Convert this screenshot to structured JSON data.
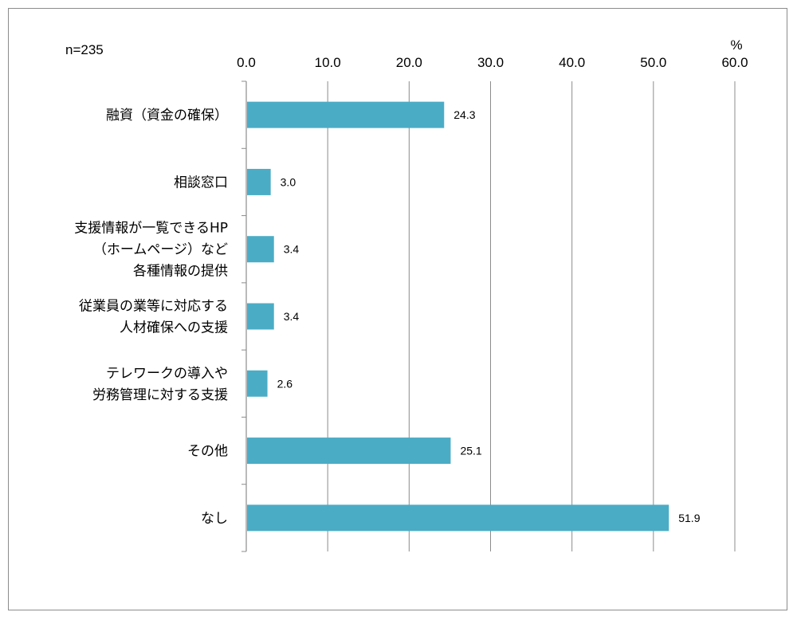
{
  "chart_data": {
    "type": "bar",
    "orientation": "horizontal",
    "sample_note": "n=235",
    "unit_label": "%",
    "categories": [
      [
        "融資（資金の確保）"
      ],
      [
        "相談窓口"
      ],
      [
        "支援情報が一覧できるHP",
        "（ホームページ）など",
        "各種情報の提供"
      ],
      [
        "従業員の業等に対応する",
        "人材確保への支援"
      ],
      [
        "テレワークの導入や",
        "労務管理に対する支援"
      ],
      [
        "その他"
      ],
      [
        "なし"
      ]
    ],
    "values": [
      24.3,
      3.0,
      3.4,
      3.4,
      2.6,
      25.1,
      51.9
    ],
    "value_labels": [
      "24.3",
      "3.0",
      "3.4",
      "3.4",
      "2.6",
      "25.1",
      "51.9"
    ],
    "xlim": [
      0,
      60
    ],
    "ticks": [
      0,
      10,
      20,
      30,
      40,
      50,
      60
    ],
    "tick_labels": [
      "0.0",
      "10.0",
      "20.0",
      "30.0",
      "40.0",
      "50.0",
      "60.0"
    ],
    "grid": true,
    "axis_position": "top",
    "bar_color": "#4bacc6"
  }
}
